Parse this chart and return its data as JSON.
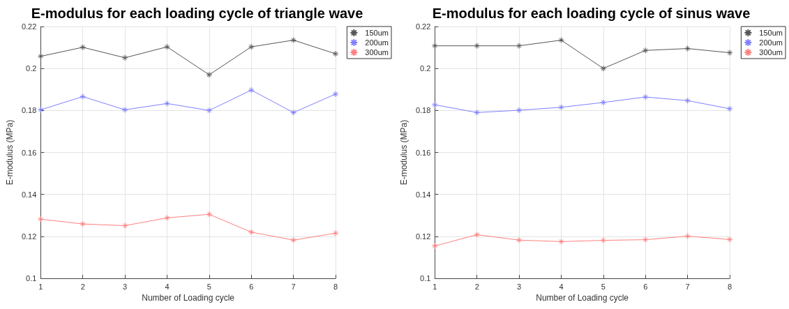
{
  "chart_data": [
    {
      "type": "line",
      "title": "E-modulus for each loading cycle of triangle wave",
      "xlabel": "Number of Loading cycle",
      "ylabel": "E-modulus (MPa)",
      "x": [
        1,
        2,
        3,
        4,
        5,
        6,
        7,
        8
      ],
      "xlim": [
        1,
        8
      ],
      "xticks": [
        1,
        2,
        3,
        4,
        5,
        6,
        7,
        8
      ],
      "ylim": [
        0.1,
        0.22
      ],
      "yticks": [
        0.1,
        0.12,
        0.14,
        0.16,
        0.18,
        0.2,
        0.22
      ],
      "grid": true,
      "legend": "top right",
      "marker": "cross",
      "line_style": "solid",
      "series": [
        {
          "name": "150um",
          "color": "#555555",
          "values": [
            0.2058,
            0.2101,
            0.2051,
            0.2103,
            0.197,
            0.2103,
            0.2135,
            0.207
          ]
        },
        {
          "name": "200um",
          "color": "#7f7fff",
          "values": [
            0.1803,
            0.1866,
            0.1803,
            0.1833,
            0.18,
            0.1897,
            0.179,
            0.1878
          ]
        },
        {
          "name": "300um",
          "color": "#ff7f7f",
          "values": [
            0.1282,
            0.1259,
            0.1251,
            0.1288,
            0.1305,
            0.122,
            0.1182,
            0.1215
          ]
        }
      ]
    },
    {
      "type": "line",
      "title": "E-modulus for each loading cycle of sinus wave",
      "xlabel": "Number of Loading cycle",
      "ylabel": "E-modulus (MPa)",
      "x": [
        1,
        2,
        3,
        4,
        5,
        6,
        7,
        8
      ],
      "xlim": [
        1,
        8
      ],
      "xticks": [
        1,
        2,
        3,
        4,
        5,
        6,
        7,
        8
      ],
      "ylim": [
        0.1,
        0.22
      ],
      "yticks": [
        0.1,
        0.12,
        0.14,
        0.16,
        0.18,
        0.2,
        0.22
      ],
      "grid": true,
      "legend": "top right",
      "marker": "cross",
      "line_style": "solid",
      "series": [
        {
          "name": "150um",
          "color": "#555555",
          "values": [
            0.2108,
            0.2108,
            0.2108,
            0.2135,
            0.2,
            0.2086,
            0.2095,
            0.2075
          ]
        },
        {
          "name": "200um",
          "color": "#7f7fff",
          "values": [
            0.1827,
            0.179,
            0.1801,
            0.1815,
            0.1838,
            0.1864,
            0.1847,
            0.1808
          ]
        },
        {
          "name": "300um",
          "color": "#ff7f7f",
          "values": [
            0.1154,
            0.1208,
            0.1182,
            0.1175,
            0.1181,
            0.1184,
            0.1201,
            0.1185
          ]
        }
      ]
    }
  ]
}
